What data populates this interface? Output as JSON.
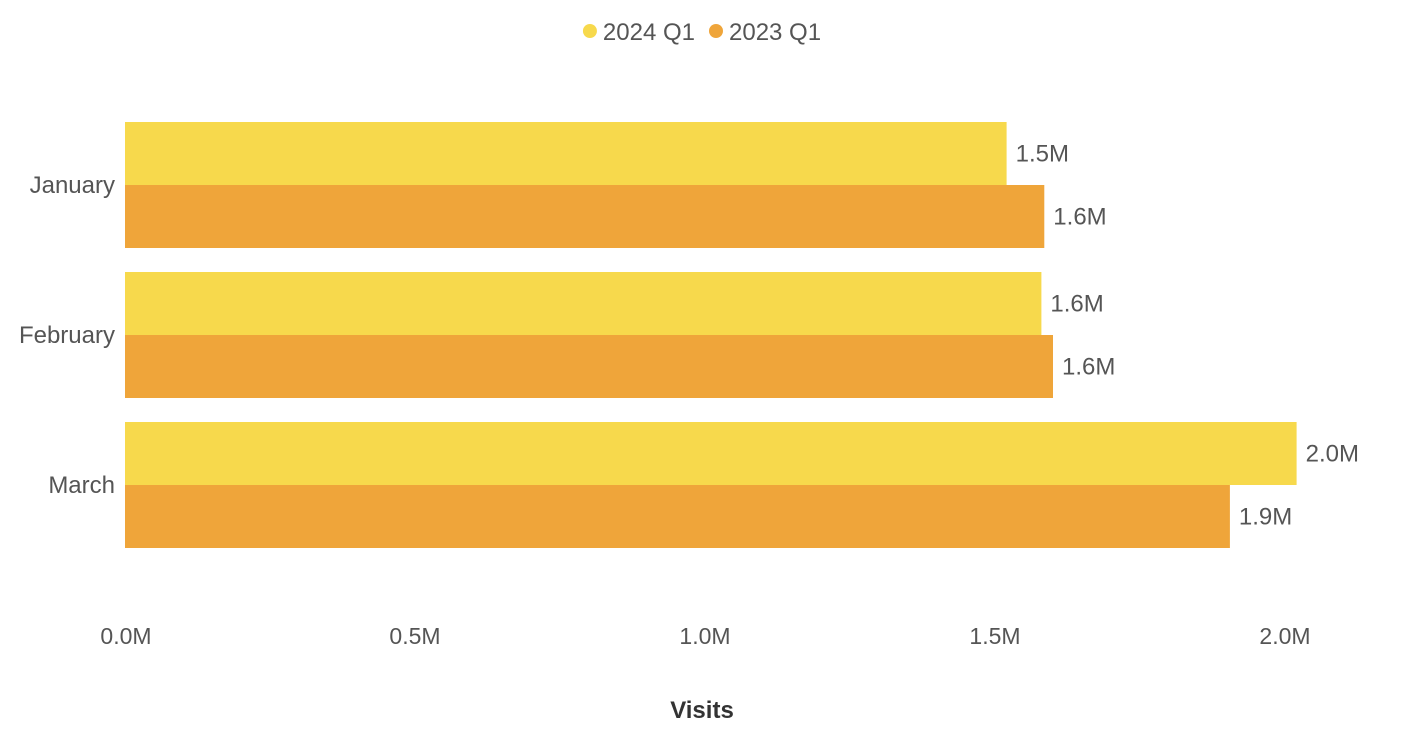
{
  "colors": {
    "series_2024": "#F7D94C",
    "series_2023": "#EFA53A",
    "text": "#555555",
    "title_text": "#333333"
  },
  "chart_data": {
    "type": "bar",
    "orientation": "horizontal",
    "title": "",
    "xlabel": "Visits",
    "ylabel": "",
    "categories": [
      "January",
      "February",
      "March"
    ],
    "series": [
      {
        "name": "2024 Q1",
        "color": "#F7D94C",
        "values": [
          1.52,
          1.58,
          2.02
        ],
        "labels": [
          "1.5M",
          "1.6M",
          "2.0M"
        ]
      },
      {
        "name": "2023 Q1",
        "color": "#EFA53A",
        "values": [
          1.585,
          1.6,
          1.905
        ],
        "labels": [
          "1.6M",
          "1.6M",
          "1.9M"
        ]
      }
    ],
    "xlim": [
      0,
      2.0
    ],
    "x_ticks": [
      0,
      0.5,
      1.0,
      1.5,
      2.0
    ],
    "x_tick_labels": [
      "0.0M",
      "0.5M",
      "1.0M",
      "1.5M",
      "2.0M"
    ],
    "grid": false,
    "legend_position": "top-center"
  }
}
